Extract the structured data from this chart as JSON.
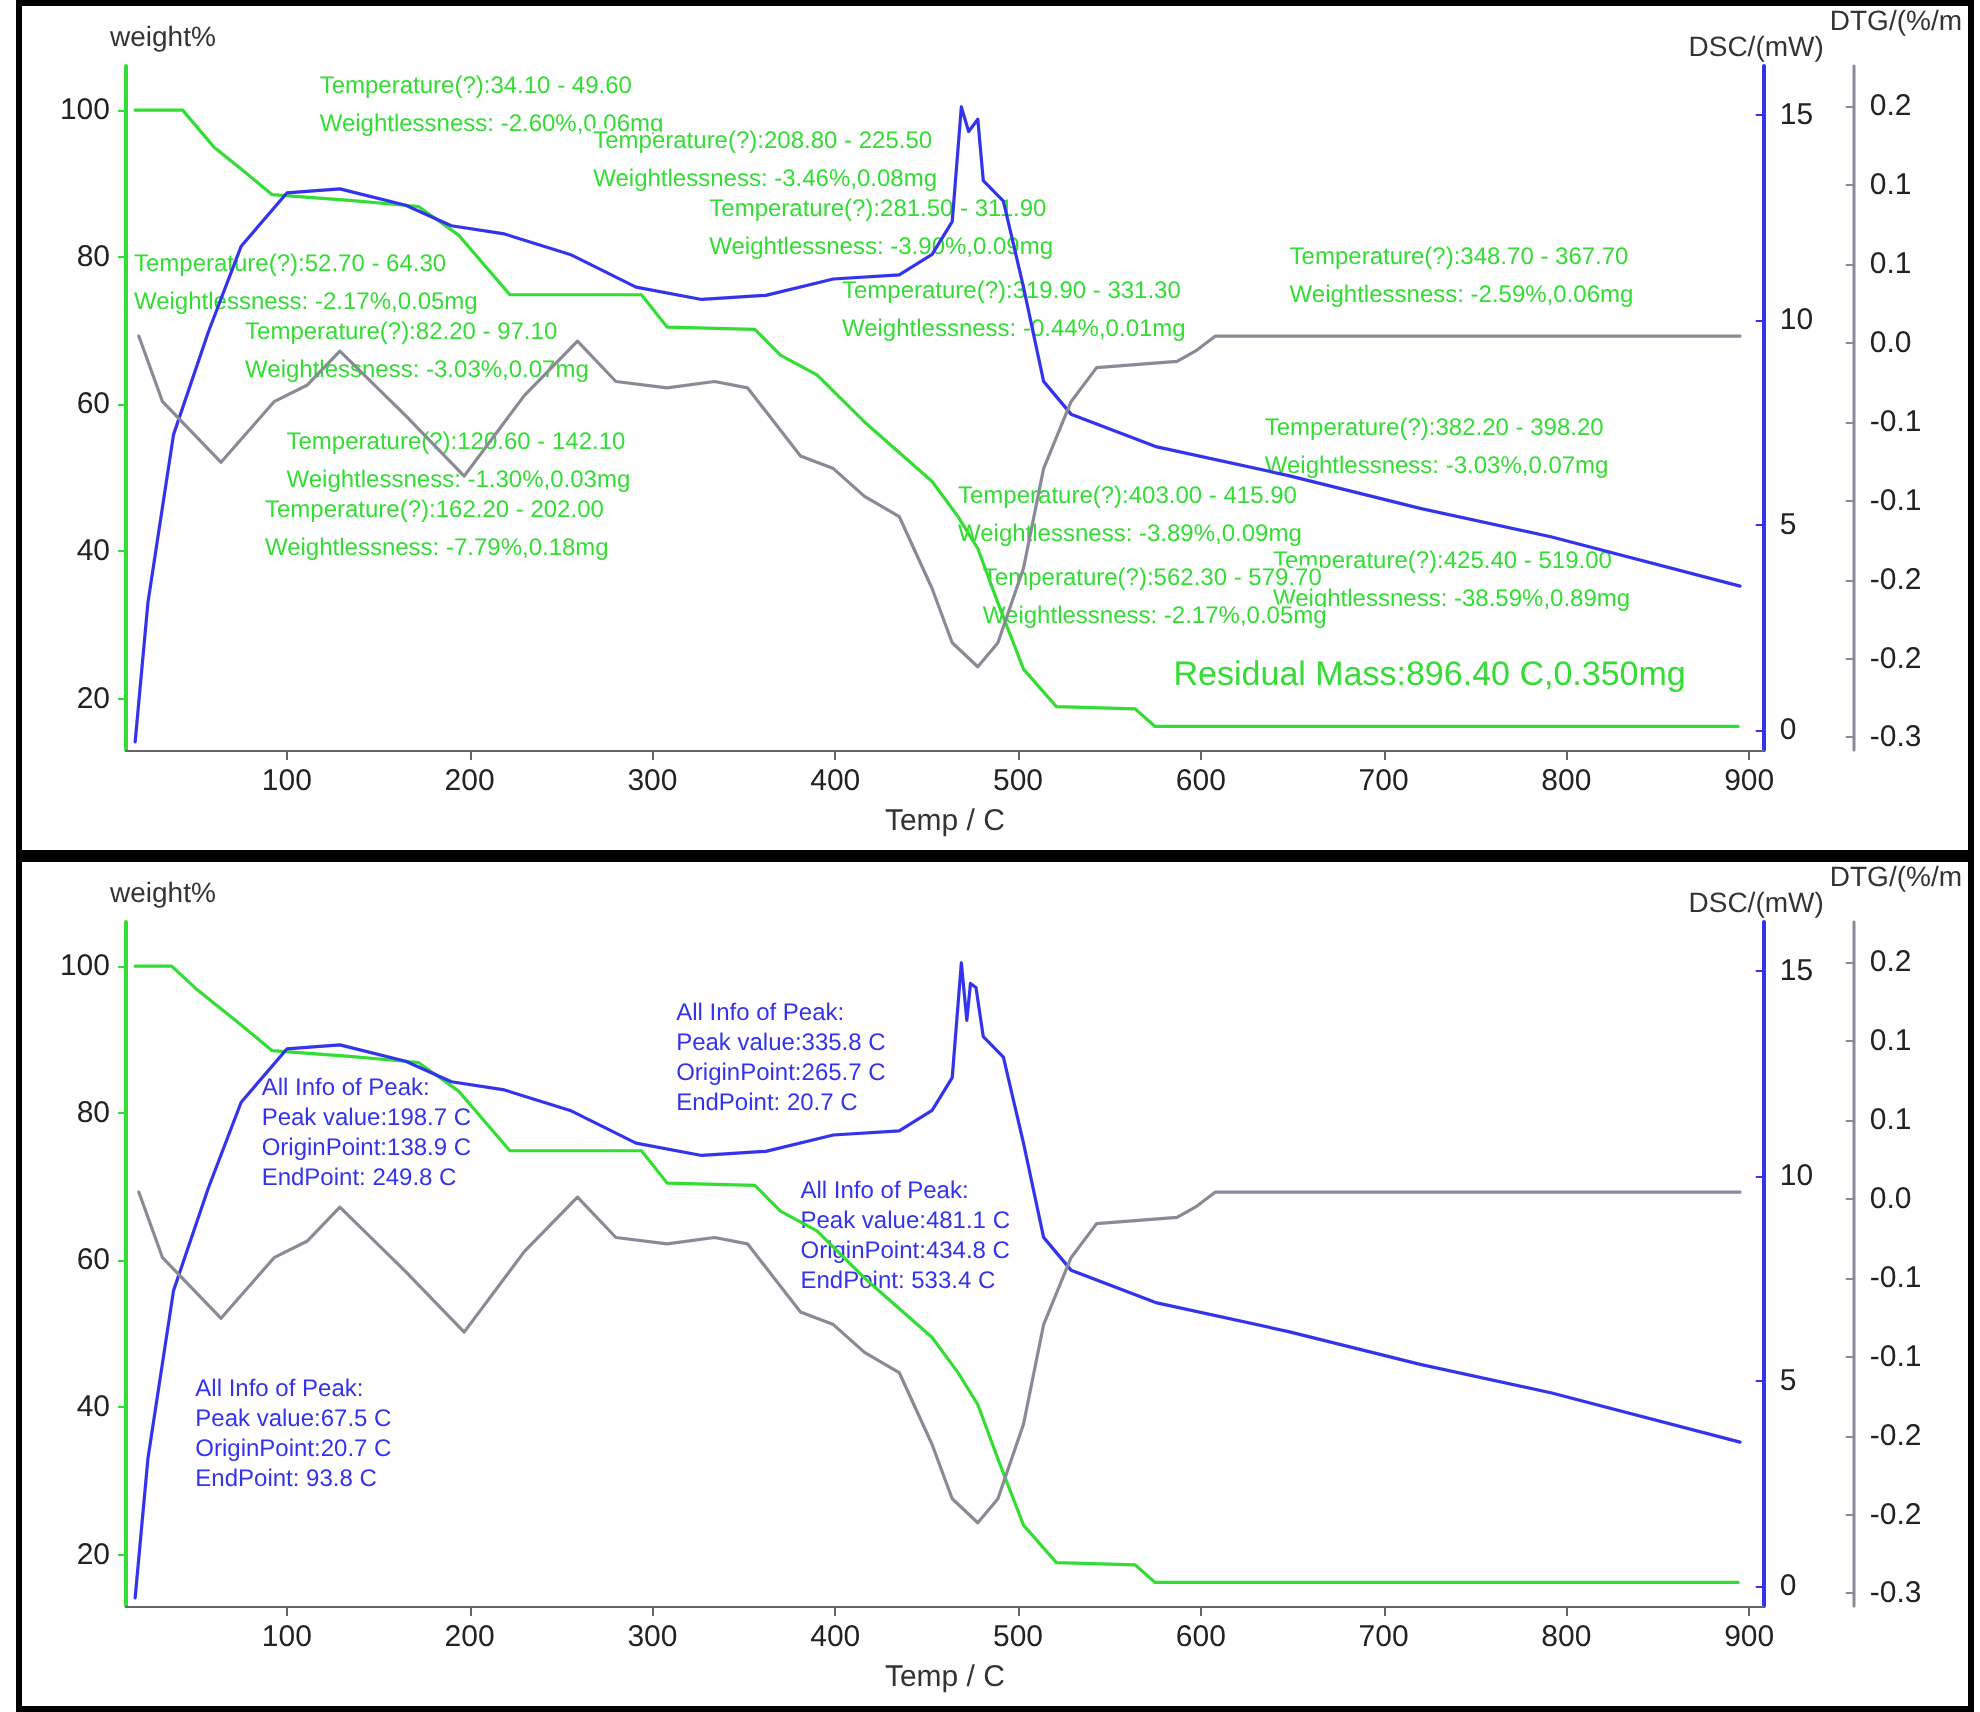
{
  "chart_data": [
    {
      "type": "line",
      "xlabel": "Temp / C",
      "ylabel": "weight%",
      "y2label": "DSC/(mW)",
      "y3label": "DTG/(%/m",
      "xlim": [
        12,
        908
      ],
      "xticks": [
        100,
        200,
        300,
        400,
        500,
        600,
        700,
        800,
        900
      ],
      "ylim": [
        13,
        106
      ],
      "yticks": [
        20,
        40,
        60,
        80,
        100
      ],
      "y2lim": [
        -0.5,
        16.2
      ],
      "y2ticks": [
        0,
        5,
        10,
        15
      ],
      "y3lim": [
        -0.31,
        0.232
      ],
      "y3ticks": [
        {
          "value": -0.3,
          "label": "-0.3"
        },
        {
          "value": -0.2375,
          "label": "-0.2"
        },
        {
          "value": -0.175,
          "label": "-0.2"
        },
        {
          "value": -0.1125,
          "label": "-0.1"
        },
        {
          "value": -0.05,
          "label": "-0.1"
        },
        {
          "value": 0.0125,
          "label": "0.0"
        },
        {
          "value": 0.075,
          "label": "0.1"
        },
        {
          "value": 0.1375,
          "label": "0.1"
        },
        {
          "value": 0.2,
          "label": "0.2"
        }
      ],
      "series": [
        {
          "color": "#33dd33",
          "x": [
            17,
            43,
            60,
            75,
            92,
            136,
            172,
            194,
            222,
            294,
            308,
            356,
            370,
            390,
            416,
            453,
            467,
            478,
            489,
            503,
            521,
            564,
            575,
            894
          ],
          "values": [
            100,
            100,
            95,
            92,
            88.5,
            87.7,
            86.9,
            83,
            74.9,
            74.9,
            70.5,
            70.2,
            66.7,
            64,
            57.6,
            49.5,
            44.8,
            40.4,
            33,
            24,
            18.9,
            18.6,
            16.2,
            16.2
          ]
        },
        {
          "color": "#3333ee",
          "axis": "y2",
          "x": [
            17,
            24,
            38,
            57,
            75,
            100,
            129,
            165,
            190,
            219,
            255,
            291,
            327,
            362,
            399,
            435,
            453,
            464,
            469,
            473,
            478,
            481,
            492,
            503,
            514,
            529,
            576,
            648,
            720,
            792,
            895
          ],
          "values": [
            -0.3,
            3.1,
            7.2,
            9.7,
            11.8,
            13.1,
            13.2,
            12.8,
            12.3,
            12.1,
            11.6,
            10.8,
            10.5,
            10.6,
            11,
            11.1,
            11.6,
            12.4,
            15.2,
            14.6,
            14.9,
            13.4,
            12.9,
            10.8,
            8.5,
            7.7,
            6.9,
            6.2,
            5.4,
            4.7,
            3.5
          ]
        },
        {
          "color": "#8a8a96",
          "axis": "y3",
          "x": [
            19,
            32,
            64,
            93,
            111,
            129,
            165,
            197,
            230,
            259,
            280,
            308,
            334,
            352,
            381,
            399,
            416,
            435,
            453,
            464,
            478,
            489,
            503,
            514,
            529,
            543,
            587,
            597,
            608,
            895
          ],
          "values": [
            0.018,
            -0.034,
            -0.082,
            -0.034,
            -0.021,
            0.006,
            -0.045,
            -0.093,
            -0.029,
            0.014,
            -0.018,
            -0.023,
            -0.018,
            -0.023,
            -0.077,
            -0.087,
            -0.109,
            -0.125,
            -0.182,
            -0.225,
            -0.244,
            -0.225,
            -0.166,
            -0.087,
            -0.034,
            -0.007,
            -0.002,
            0.006,
            0.018,
            0.018
          ]
        }
      ],
      "annotations": [
        "Temperature(?):34.10 - 49.60\nWeightlessness: -2.60%,0.06mg",
        "Temperature(?):208.80 - 225.50\nWeightlessness: -3.46%,0.08mg",
        "Temperature(?):281.50 - 311.90\nWeightlessness: -3.90%,0.09mg",
        "Temperature(?):319.90 - 331.30\nWeightlessness: -0.44%,0.01mg",
        "Temperature(?):348.70 - 367.70\nWeightlessness: -2.59%,0.06mg",
        "Temperature(?):382.20 - 398.20\nWeightlessness: -3.03%,0.07mg",
        "Temperature(?):403.00 - 415.90\nWeightlessness: -3.89%,0.09mg",
        "Temperature(?):425.40 - 519.00\nWeightlessness: -38.59%,0.89mg",
        "Temperature(?):562.30 - 579.70\nWeightlessness: -2.17%,0.05mg",
        "Temperature(?):52.70 - 64.30\nWeightlessness: -2.17%,0.05mg",
        "Temperature(?):82.20 - 97.10\nWeightlessness: -3.03%,0.07mg",
        "Temperature(?):120.60 - 142.10\nWeightlessness: -1.30%,0.03mg",
        "Temperature(?):162.20 - 202.00\nWeightlessness: -7.79%,0.18mg",
        "Residual Mass:896.40 C,0.350mg"
      ]
    },
    {
      "type": "line",
      "xlabel": "Temp / C",
      "ylabel": "weight%",
      "y2label": "DSC/(mW)",
      "y3label": "DTG/(%/m",
      "xlim": [
        12,
        908
      ],
      "xticks": [
        100,
        200,
        300,
        400,
        500,
        600,
        700,
        800,
        900
      ],
      "ylim": [
        13,
        106
      ],
      "yticks": [
        20,
        40,
        60,
        80,
        100
      ],
      "y2lim": [
        -0.5,
        16.2
      ],
      "y2ticks": [
        0,
        5,
        10,
        15
      ],
      "y3lim": [
        -0.31,
        0.232
      ],
      "y3ticks": [
        {
          "value": -0.3,
          "label": "-0.3"
        },
        {
          "value": -0.2375,
          "label": "-0.2"
        },
        {
          "value": -0.175,
          "label": "-0.2"
        },
        {
          "value": -0.1125,
          "label": "-0.1"
        },
        {
          "value": -0.05,
          "label": "-0.1"
        },
        {
          "value": 0.0125,
          "label": "0.0"
        },
        {
          "value": 0.075,
          "label": "0.1"
        },
        {
          "value": 0.1375,
          "label": "0.1"
        },
        {
          "value": 0.2,
          "label": "0.2"
        }
      ],
      "series": [
        {
          "color": "#33dd33",
          "x": [
            17,
            37,
            50,
            60,
            75,
            92,
            136,
            172,
            194,
            222,
            294,
            308,
            356,
            370,
            390,
            416,
            453,
            467,
            478,
            489,
            503,
            521,
            564,
            575,
            894
          ],
          "values": [
            100,
            100,
            97,
            95,
            92,
            88.5,
            87.7,
            86.9,
            83,
            74.9,
            74.9,
            70.5,
            70.2,
            66.7,
            64,
            57.6,
            49.5,
            44.8,
            40.4,
            33,
            24,
            18.9,
            18.6,
            16.2,
            16.2
          ]
        },
        {
          "color": "#3333ee",
          "axis": "y2",
          "x": [
            17,
            24,
            38,
            57,
            75,
            100,
            129,
            165,
            190,
            219,
            255,
            291,
            327,
            362,
            399,
            435,
            453,
            464,
            469,
            472,
            474,
            477,
            481,
            492,
            503,
            514,
            529,
            576,
            648,
            720,
            792,
            895
          ],
          "values": [
            -0.3,
            3.1,
            7.2,
            9.7,
            11.8,
            13.1,
            13.2,
            12.8,
            12.3,
            12.1,
            11.6,
            10.8,
            10.5,
            10.6,
            11,
            11.1,
            11.6,
            12.4,
            15.2,
            13.8,
            14.7,
            14.6,
            13.4,
            12.9,
            10.8,
            8.5,
            7.7,
            6.9,
            6.2,
            5.4,
            4.7,
            3.5
          ]
        },
        {
          "color": "#8a8a96",
          "axis": "y3",
          "x": [
            19,
            32,
            64,
            93,
            111,
            129,
            165,
            197,
            230,
            259,
            280,
            308,
            334,
            352,
            381,
            399,
            416,
            435,
            453,
            464,
            478,
            489,
            503,
            514,
            529,
            543,
            587,
            597,
            608,
            895
          ],
          "values": [
            0.018,
            -0.034,
            -0.082,
            -0.034,
            -0.021,
            0.006,
            -0.045,
            -0.093,
            -0.029,
            0.014,
            -0.018,
            -0.023,
            -0.018,
            -0.023,
            -0.077,
            -0.087,
            -0.109,
            -0.125,
            -0.182,
            -0.225,
            -0.244,
            -0.225,
            -0.166,
            -0.087,
            -0.034,
            -0.007,
            -0.002,
            0.006,
            0.018,
            0.018
          ]
        }
      ],
      "annotations": [
        "All Info of Peak:\nPeak value:67.5 C\nOriginPoint:20.7 C\nEndPoint: 93.8 C",
        "All Info of Peak:\nPeak value:198.7 C\nOriginPoint:138.9 C\nEndPoint: 249.8 C",
        "All Info of Peak:\nPeak value:335.8 C\nOriginPoint:265.7 C\nEndPoint: 20.7 C",
        "All Info of Peak:\nPeak value:481.1 C\nOriginPoint:434.8 C\nEndPoint: 533.4 C"
      ]
    }
  ]
}
